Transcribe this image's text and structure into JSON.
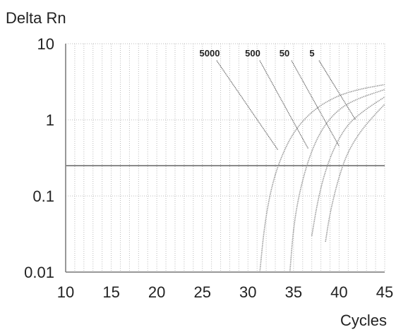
{
  "chart_data": {
    "type": "line",
    "ylabel": "Delta Rn",
    "xlabel": "Cycles",
    "xlim": [
      10,
      45
    ],
    "ylim": [
      0.01,
      10
    ],
    "y_scale": "log",
    "grid": true,
    "x_ticks": [
      "10",
      "15",
      "20",
      "25",
      "30",
      "35",
      "40",
      "45"
    ],
    "y_ticks": [
      "10",
      "1",
      "0.1",
      "0.01"
    ],
    "threshold": 0.25,
    "annotations": [
      {
        "label": "5000",
        "target": [
          33.3,
          0.4
        ]
      },
      {
        "label": "500",
        "target": [
          36.6,
          0.42
        ]
      },
      {
        "label": "50",
        "target": [
          40.0,
          0.45
        ]
      },
      {
        "label": "5",
        "target": [
          41.8,
          1.0
        ]
      }
    ],
    "series": [
      {
        "label": "5000",
        "x": [
          31.3,
          31.8,
          32.5,
          33.5,
          35,
          37,
          39.5,
          42,
          45
        ],
        "y": [
          0.01,
          0.04,
          0.12,
          0.3,
          0.7,
          1.3,
          2.0,
          2.5,
          2.9
        ]
      },
      {
        "label": "500",
        "x": [
          34.6,
          35.0,
          35.7,
          36.8,
          38.2,
          40,
          42,
          45
        ],
        "y": [
          0.01,
          0.04,
          0.12,
          0.35,
          0.8,
          1.4,
          1.9,
          2.5
        ]
      },
      {
        "label": "50",
        "x": [
          37.0,
          37.6,
          38.4,
          39.5,
          41,
          43,
          45
        ],
        "y": [
          0.03,
          0.08,
          0.2,
          0.45,
          0.9,
          1.4,
          2.0
        ]
      },
      {
        "label": "5",
        "x": [
          38.5,
          39.0,
          39.8,
          40.8,
          42.3,
          44,
          45
        ],
        "y": [
          0.025,
          0.06,
          0.15,
          0.35,
          0.7,
          1.2,
          1.6
        ]
      }
    ],
    "colors": {
      "series": "#9a9a9a",
      "threshold": "#8a8a8a",
      "text": "#222222"
    }
  }
}
